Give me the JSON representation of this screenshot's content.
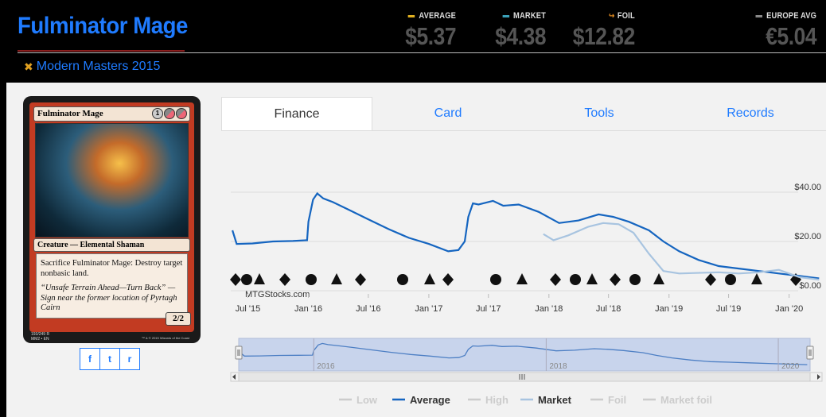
{
  "header": {
    "title": "Fulminator Mage",
    "set_name": "Modern Masters 2015",
    "prices": [
      {
        "label": "AVERAGE",
        "value": "$5.37",
        "color": "#e0b020"
      },
      {
        "label": "MARKET",
        "value": "$4.38",
        "color": "#3aa0b8"
      },
      {
        "label": "FOIL",
        "value": "$12.82",
        "color": "#e08a20",
        "icon": "foil-arrow-icon"
      },
      {
        "label": "EUROPE AVG",
        "value": "€5.04",
        "color": "#888888"
      }
    ]
  },
  "card_image": {
    "name": "Fulminator Mage",
    "mana": [
      "1",
      "B/R",
      "B/R"
    ],
    "type_line": "Creature — Elemental Shaman",
    "rules_text": "Sacrifice Fulminator Mage: Destroy target nonbasic land.",
    "flavor_text": "“Unsafe Terrain Ahead—Turn Back” —Sign near the former location of Pyrtagh Cairn",
    "pt": "2/2",
    "footer_line1": "193/249 R",
    "footer_line2": "MM2 • EN",
    "copyright": "™ & © 2015 Wizards of the Coast"
  },
  "share_buttons": [
    {
      "name": "facebook-share-button",
      "icon": "facebook-icon",
      "glyph": "f"
    },
    {
      "name": "twitter-share-button",
      "icon": "twitter-icon",
      "glyph": "t"
    },
    {
      "name": "reddit-share-button",
      "icon": "reddit-icon",
      "glyph": "r"
    }
  ],
  "tabs": [
    {
      "label": "Finance",
      "active": true
    },
    {
      "label": "Card",
      "active": false
    },
    {
      "label": "Tools",
      "active": false
    },
    {
      "label": "Records",
      "active": false
    }
  ],
  "chart_data": {
    "type": "line",
    "watermark": "MTGStocks.com",
    "y_ticks": [
      "$40.00",
      "$20.00",
      "$0.00"
    ],
    "ylim": [
      0,
      45
    ],
    "x_ticks": [
      "Jul '15",
      "Jan '16",
      "Jul '16",
      "Jan '17",
      "Jul '17",
      "Jan '18",
      "Jul '18",
      "Jan '19",
      "Jul '19",
      "Jan '20"
    ],
    "navigator_ticks": [
      "2016",
      "2018",
      "2020"
    ],
    "series": [
      {
        "name": "Average",
        "color": "#1565c0",
        "points": [
          [
            "2015-05-15",
            24.5
          ],
          [
            "2015-05-28",
            19
          ],
          [
            "2015-07-15",
            19.2
          ],
          [
            "2015-09-15",
            20
          ],
          [
            "2015-11-15",
            20.2
          ],
          [
            "2015-12-28",
            20.5
          ],
          [
            "2016-01-01",
            28
          ],
          [
            "2016-01-15",
            37
          ],
          [
            "2016-01-28",
            39.5
          ],
          [
            "2016-02-15",
            37.5
          ],
          [
            "2016-03-15",
            36
          ],
          [
            "2016-05-01",
            33
          ],
          [
            "2016-07-01",
            29
          ],
          [
            "2016-09-01",
            25
          ],
          [
            "2016-11-01",
            21.5
          ],
          [
            "2017-01-01",
            19
          ],
          [
            "2017-03-01",
            16
          ],
          [
            "2017-04-01",
            16.5
          ],
          [
            "2017-04-20",
            20
          ],
          [
            "2017-05-01",
            30
          ],
          [
            "2017-05-15",
            35.5
          ],
          [
            "2017-06-01",
            35
          ],
          [
            "2017-07-15",
            36.5
          ],
          [
            "2017-08-15",
            34.5
          ],
          [
            "2017-10-01",
            35
          ],
          [
            "2017-12-01",
            32
          ],
          [
            "2018-02-01",
            27.5
          ],
          [
            "2018-04-01",
            28.5
          ],
          [
            "2018-06-01",
            31
          ],
          [
            "2018-07-15",
            30
          ],
          [
            "2018-09-01",
            28
          ],
          [
            "2018-11-01",
            24.5
          ],
          [
            "2018-12-15",
            20
          ],
          [
            "2019-02-01",
            16
          ],
          [
            "2019-04-01",
            12.5
          ],
          [
            "2019-06-01",
            10
          ],
          [
            "2019-08-01",
            9
          ],
          [
            "2019-10-01",
            8
          ],
          [
            "2019-12-01",
            7
          ],
          [
            "2020-02-01",
            6
          ],
          [
            "2020-04-01",
            5
          ]
        ]
      },
      {
        "name": "Market",
        "color": "#a8c4e0",
        "points": [
          [
            "2017-12-15",
            23
          ],
          [
            "2018-01-15",
            20.5
          ],
          [
            "2018-03-01",
            22.5
          ],
          [
            "2018-05-01",
            26
          ],
          [
            "2018-06-15",
            27.5
          ],
          [
            "2018-08-01",
            27
          ],
          [
            "2018-09-15",
            23.5
          ],
          [
            "2018-11-01",
            15
          ],
          [
            "2018-12-15",
            8
          ],
          [
            "2019-02-01",
            7
          ],
          [
            "2019-06-01",
            7.5
          ],
          [
            "2019-08-01",
            7
          ],
          [
            "2019-10-01",
            7.5
          ],
          [
            "2019-12-01",
            8.5
          ],
          [
            "2020-02-01",
            5.5
          ],
          [
            "2020-04-01",
            4.5
          ]
        ]
      }
    ],
    "legend": [
      {
        "label": "Low",
        "color": "#cccccc",
        "enabled": false
      },
      {
        "label": "Average",
        "color": "#1565c0",
        "enabled": true
      },
      {
        "label": "High",
        "color": "#cccccc",
        "enabled": false
      },
      {
        "label": "Market",
        "color": "#a8c4e0",
        "enabled": true
      },
      {
        "label": "Foil",
        "color": "#cccccc",
        "enabled": false
      },
      {
        "label": "Market foil",
        "color": "#cccccc",
        "enabled": false
      }
    ],
    "set_release_markers": [
      "set-symbol-icon",
      "set-symbol-icon",
      "set-symbol-icon",
      "set-symbol-icon",
      "set-symbol-icon",
      "set-symbol-icon",
      "set-symbol-icon",
      "set-symbol-icon",
      "set-symbol-icon",
      "set-symbol-icon",
      "set-symbol-icon",
      "set-symbol-icon",
      "set-symbol-icon",
      "set-symbol-icon",
      "set-symbol-icon",
      "set-symbol-icon",
      "set-symbol-icon",
      "set-symbol-icon",
      "set-symbol-icon",
      "set-symbol-icon",
      "set-symbol-icon",
      "set-symbol-icon"
    ]
  }
}
